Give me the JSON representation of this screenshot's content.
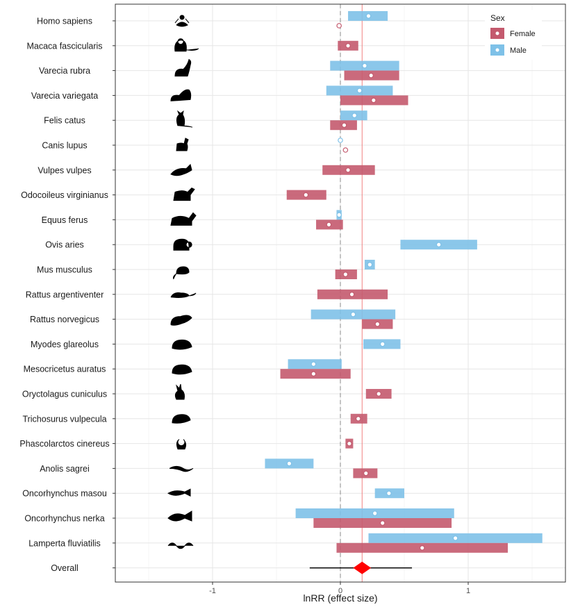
{
  "chart_data": {
    "type": "forest",
    "xlabel": "lnRR (effect size)",
    "xlim": [
      -1.75,
      1.75
    ],
    "xticks": [
      {
        "value": -1,
        "label": "-1"
      },
      {
        "value": 0,
        "label": "0"
      },
      {
        "value": 1,
        "label": "1"
      }
    ],
    "reference_line": 0,
    "overall_line": 0.17,
    "grid": true,
    "legend": {
      "title": "Sex",
      "position": "top-right",
      "entries": [
        {
          "name": "Female",
          "color": "#c45a6e"
        },
        {
          "name": "Male",
          "color": "#7ec1e8"
        }
      ]
    },
    "colors": {
      "female": "#c45a6e",
      "male": "#7ec1e8",
      "overall": "#ff0000",
      "overall_line": "#f08080"
    },
    "species": [
      {
        "name": "Homo sapiens",
        "icon": "human-meditating-icon",
        "female": {
          "est": -0.01,
          "lo": -0.01,
          "hi": -0.01
        },
        "male": {
          "est": 0.22,
          "lo": 0.06,
          "hi": 0.37
        }
      },
      {
        "name": "Macaca fascicularis",
        "icon": "macaque-icon",
        "female": {
          "est": 0.06,
          "lo": -0.02,
          "hi": 0.14
        },
        "male": null
      },
      {
        "name": "Varecia rubra",
        "icon": "lemur-icon",
        "female": {
          "est": 0.24,
          "lo": 0.03,
          "hi": 0.46
        },
        "male": {
          "est": 0.19,
          "lo": -0.08,
          "hi": 0.46
        }
      },
      {
        "name": "Varecia variegata",
        "icon": "ruffed-lemur-icon",
        "female": {
          "est": 0.26,
          "lo": 0.0,
          "hi": 0.53
        },
        "male": {
          "est": 0.15,
          "lo": -0.11,
          "hi": 0.41
        }
      },
      {
        "name": "Felis catus",
        "icon": "cat-icon",
        "female": {
          "est": 0.03,
          "lo": -0.08,
          "hi": 0.13
        },
        "male": {
          "est": 0.11,
          "lo": 0.0,
          "hi": 0.21
        }
      },
      {
        "name": "Canis lupus",
        "icon": "wolf-icon",
        "female": {
          "est": 0.04,
          "lo": 0.04,
          "hi": 0.04
        },
        "male": {
          "est": 0.0,
          "lo": 0.0,
          "hi": 0.0
        }
      },
      {
        "name": "Vulpes vulpes",
        "icon": "fox-icon",
        "female": {
          "est": 0.06,
          "lo": -0.14,
          "hi": 0.27
        },
        "male": null
      },
      {
        "name": "Odocoileus virginianus",
        "icon": "deer-icon",
        "female": {
          "est": -0.27,
          "lo": -0.42,
          "hi": -0.11
        },
        "male": null
      },
      {
        "name": "Equus ferus",
        "icon": "horse-icon",
        "female": {
          "est": -0.09,
          "lo": -0.19,
          "hi": 0.02
        },
        "male": {
          "est": -0.01,
          "lo": -0.03,
          "hi": 0.01
        }
      },
      {
        "name": "Ovis aries",
        "icon": "sheep-icon",
        "female": null,
        "male": {
          "est": 0.77,
          "lo": 0.47,
          "hi": 1.07
        }
      },
      {
        "name": "Mus musculus",
        "icon": "mouse-icon",
        "female": {
          "est": 0.04,
          "lo": -0.04,
          "hi": 0.13
        },
        "male": {
          "est": 0.23,
          "lo": 0.19,
          "hi": 0.27
        }
      },
      {
        "name": "Rattus argentiventer",
        "icon": "field-rat-icon",
        "female": {
          "est": 0.09,
          "lo": -0.18,
          "hi": 0.37
        },
        "male": null
      },
      {
        "name": "Rattus norvegicus",
        "icon": "rat-icon",
        "female": {
          "est": 0.29,
          "lo": 0.17,
          "hi": 0.41
        },
        "male": {
          "est": 0.1,
          "lo": -0.23,
          "hi": 0.43
        }
      },
      {
        "name": "Myodes glareolus",
        "icon": "vole-icon",
        "female": null,
        "male": {
          "est": 0.33,
          "lo": 0.18,
          "hi": 0.47
        }
      },
      {
        "name": "Mesocricetus auratus",
        "icon": "hamster-icon",
        "female": {
          "est": -0.21,
          "lo": -0.47,
          "hi": 0.08
        },
        "male": {
          "est": -0.21,
          "lo": -0.41,
          "hi": 0.01
        }
      },
      {
        "name": "Oryctolagus cuniculus",
        "icon": "rabbit-icon",
        "female": {
          "est": 0.3,
          "lo": 0.2,
          "hi": 0.4
        },
        "male": null
      },
      {
        "name": "Trichosurus vulpecula",
        "icon": "possum-icon",
        "female": {
          "est": 0.14,
          "lo": 0.08,
          "hi": 0.21
        },
        "male": null
      },
      {
        "name": "Phascolarctos cinereus",
        "icon": "koala-icon",
        "female": {
          "est": 0.07,
          "lo": 0.04,
          "hi": 0.1
        },
        "male": null
      },
      {
        "name": "Anolis sagrei",
        "icon": "lizard-icon",
        "female": {
          "est": 0.2,
          "lo": 0.1,
          "hi": 0.29
        },
        "male": {
          "est": -0.4,
          "lo": -0.59,
          "hi": -0.21
        }
      },
      {
        "name": "Oncorhynchus masou",
        "icon": "salmon-icon",
        "female": null,
        "male": {
          "est": 0.38,
          "lo": 0.27,
          "hi": 0.5
        }
      },
      {
        "name": "Oncorhynchus nerka",
        "icon": "sockeye-salmon-icon",
        "female": {
          "est": 0.33,
          "lo": -0.21,
          "hi": 0.87
        },
        "male": {
          "est": 0.27,
          "lo": -0.35,
          "hi": 0.89
        }
      },
      {
        "name": "Lamperta fluviatilis",
        "icon": "lamprey-icon",
        "female": {
          "est": 0.64,
          "lo": -0.03,
          "hi": 1.31
        },
        "male": {
          "est": 0.9,
          "lo": 0.22,
          "hi": 1.58
        }
      }
    ],
    "overall": {
      "name": "Overall",
      "est": 0.17,
      "lo": -0.24,
      "hi": 0.56,
      "ci_lo": 0.1,
      "ci_hi": 0.24
    }
  }
}
